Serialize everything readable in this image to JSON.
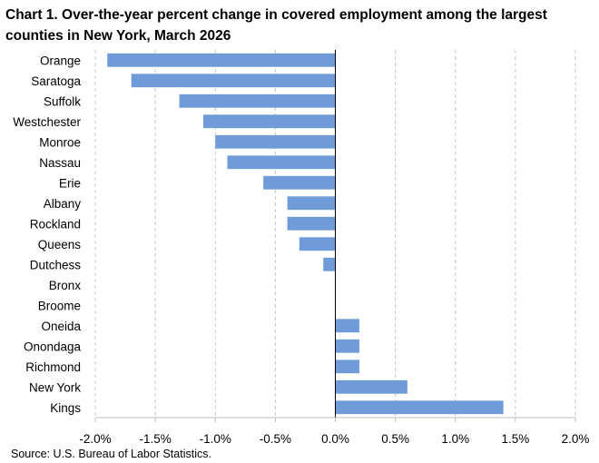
{
  "chart_data": {
    "type": "bar",
    "orientation": "horizontal",
    "title": "Chart 1. Over-the-year percent change in covered employment among the largest counties in New York, March 2026",
    "source": "Source: U.S. Bureau of Labor Statistics.",
    "categories": [
      "Orange",
      "Saratoga",
      "Suffolk",
      "Westchester",
      "Monroe",
      "Nassau",
      "Erie",
      "Albany",
      "Rockland",
      "Queens",
      "Dutchess",
      "Bronx",
      "Broome",
      "Oneida",
      "Onondaga",
      "Richmond",
      "New York",
      "Kings"
    ],
    "values": [
      -1.9,
      -1.7,
      -1.3,
      -1.1,
      -1.0,
      -0.9,
      -0.6,
      -0.4,
      -0.4,
      -0.3,
      -0.1,
      0.0,
      0.0,
      0.2,
      0.2,
      0.2,
      0.6,
      1.4
    ],
    "xlim": [
      -2.0,
      2.0
    ],
    "xticks": [
      -2.0,
      -1.5,
      -1.0,
      -0.5,
      0.0,
      0.5,
      1.0,
      1.5,
      2.0
    ],
    "xtick_labels": [
      "-2.0%",
      "-1.5%",
      "-1.0%",
      "-0.5%",
      "0.0%",
      "0.5%",
      "1.0%",
      "1.5%",
      "2.0%"
    ],
    "xlabel": "",
    "ylabel": "",
    "grid": "vertical dashed",
    "legend": "none",
    "bar_color": "#6f9bd8",
    "grid_color": "#c8c8c8",
    "axis_color": "#000000"
  }
}
